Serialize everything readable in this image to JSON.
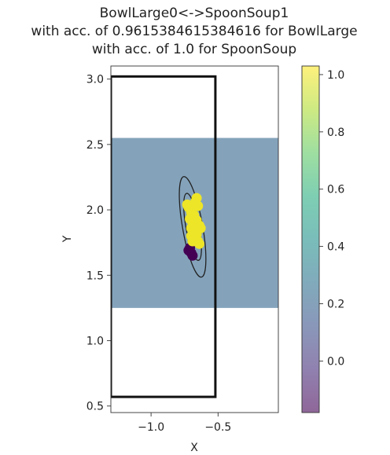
{
  "chart_data": {
    "type": "scatter",
    "title_lines": [
      "BowlLarge0<->SpoonSoup1",
      "with acc. of 0.9615384615384616 for BowlLarge",
      "with acc. of 1.0 for SpoonSoup"
    ],
    "xlabel": "X",
    "ylabel": "Y",
    "xlim": [
      -1.3,
      -0.05
    ],
    "ylim": [
      0.45,
      3.1
    ],
    "xticks": [
      {
        "v": -1.0,
        "label": "−1.0"
      },
      {
        "v": -0.5,
        "label": "−0.5"
      }
    ],
    "yticks": [
      {
        "v": 0.5,
        "label": "0.5"
      },
      {
        "v": 1.0,
        "label": "1.0"
      },
      {
        "v": 1.5,
        "label": "1.5"
      },
      {
        "v": 2.0,
        "label": "2.0"
      },
      {
        "v": 2.5,
        "label": "2.5"
      },
      {
        "v": 3.0,
        "label": "3.0"
      }
    ],
    "grid": false,
    "shaded_region": {
      "x": [
        -1.3,
        -0.05
      ],
      "y": [
        1.25,
        2.55
      ],
      "value": 0.21
    },
    "outline_rect": {
      "x": [
        -1.3,
        -0.52
      ],
      "y": [
        0.57,
        3.02
      ]
    },
    "ellipses": [
      {
        "cx": -0.69,
        "cy": 1.87,
        "rx": 0.075,
        "ry": 0.39,
        "angle_deg": -10
      },
      {
        "cx": -0.69,
        "cy": 1.87,
        "rx": 0.05,
        "ry": 0.26,
        "angle_deg": -10
      }
    ],
    "points": [
      {
        "x": -0.71,
        "y": 1.71,
        "c": -0.18
      },
      {
        "x": -0.7,
        "y": 1.67,
        "c": -0.18
      },
      {
        "x": -0.69,
        "y": 1.65,
        "c": -0.18
      },
      {
        "x": -0.72,
        "y": 1.69,
        "c": -0.18
      },
      {
        "x": -0.73,
        "y": 2.04,
        "c": 1.0
      },
      {
        "x": -0.72,
        "y": 2.02,
        "c": 1.0
      },
      {
        "x": -0.66,
        "y": 2.09,
        "c": 1.0
      },
      {
        "x": -0.67,
        "y": 2.06,
        "c": 1.0
      },
      {
        "x": -0.65,
        "y": 2.03,
        "c": 1.0
      },
      {
        "x": -0.7,
        "y": 1.98,
        "c": 1.0
      },
      {
        "x": -0.68,
        "y": 1.96,
        "c": 1.0
      },
      {
        "x": -0.71,
        "y": 1.93,
        "c": 1.0
      },
      {
        "x": -0.69,
        "y": 1.9,
        "c": 1.0
      },
      {
        "x": -0.66,
        "y": 1.92,
        "c": 1.0
      },
      {
        "x": -0.64,
        "y": 1.88,
        "c": 1.0
      },
      {
        "x": -0.7,
        "y": 1.86,
        "c": 1.0
      },
      {
        "x": -0.68,
        "y": 1.84,
        "c": 1.0
      },
      {
        "x": -0.63,
        "y": 1.86,
        "c": 1.0
      },
      {
        "x": -0.66,
        "y": 1.81,
        "c": 1.0
      },
      {
        "x": -0.7,
        "y": 1.8,
        "c": 1.0
      },
      {
        "x": -0.67,
        "y": 1.78,
        "c": 1.0
      },
      {
        "x": -0.65,
        "y": 1.76,
        "c": 1.0
      },
      {
        "x": -0.69,
        "y": 1.76,
        "c": 1.0
      },
      {
        "x": -0.64,
        "y": 1.74,
        "c": 1.0
      }
    ],
    "colorbar": {
      "range": [
        -0.18,
        1.03
      ],
      "ticks": [
        {
          "v": 0.0,
          "label": "0.0"
        },
        {
          "v": 0.2,
          "label": "0.2"
        },
        {
          "v": 0.4,
          "label": "0.4"
        },
        {
          "v": 0.6,
          "label": "0.6"
        },
        {
          "v": 0.8,
          "label": "0.8"
        },
        {
          "v": 1.0,
          "label": "1.0"
        }
      ],
      "alpha": 0.6
    }
  }
}
